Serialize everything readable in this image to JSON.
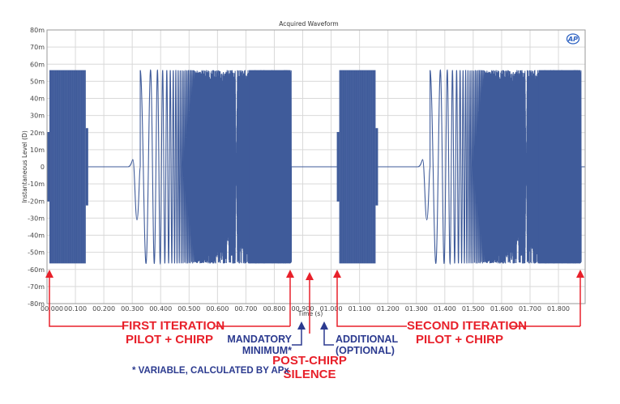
{
  "chart_data": {
    "type": "line",
    "title": "Acquired Waveform",
    "xlabel": "Time (s)",
    "ylabel": "Instantaneous Level (D)",
    "xlim": [
      0,
      1.894
    ],
    "ylim": [
      -0.08,
      0.08
    ],
    "grid": true,
    "x_ticks": [
      "00.000",
      "00.100",
      "00.200",
      "00.300",
      "00.400",
      "00.500",
      "00.600",
      "00.700",
      "00.800",
      "00.900",
      "01.000",
      "01.100",
      "01.200",
      "01.300",
      "01.400",
      "01.500",
      "01.600",
      "01.700",
      "01.800"
    ],
    "y_ticks": [
      "80m",
      "70m",
      "60m",
      "50m",
      "40m",
      "30m",
      "20m",
      "10m",
      "0",
      "-10m",
      "-20m",
      "-30m",
      "-40m",
      "-50m",
      "-60m",
      "-70m",
      "-80m"
    ],
    "series": [
      {
        "name": "Acquired Waveform",
        "color": "#3f5b9a",
        "segments": [
          {
            "kind": "pilot",
            "t_start": 0.0,
            "t_end": 0.145,
            "amplitude": 0.0565
          },
          {
            "kind": "silence",
            "t_start": 0.145,
            "t_end": 0.285,
            "amplitude": 0
          },
          {
            "kind": "chirp",
            "t_start": 0.285,
            "t_end": 0.86,
            "amplitude": 0.0565
          },
          {
            "kind": "silence",
            "t_start": 0.86,
            "t_end": 1.02,
            "amplitude": 0
          },
          {
            "kind": "pilot",
            "t_start": 1.02,
            "t_end": 1.165,
            "amplitude": 0.0565
          },
          {
            "kind": "silence",
            "t_start": 1.165,
            "t_end": 1.305,
            "amplitude": 0
          },
          {
            "kind": "chirp",
            "t_start": 1.305,
            "t_end": 1.88,
            "amplitude": 0.0565
          },
          {
            "kind": "silence",
            "t_start": 1.88,
            "t_end": 1.894,
            "amplitude": 0
          }
        ]
      }
    ],
    "annotations": [
      {
        "text": "FIRST ITERATION PILOT + CHIRP",
        "span": [
          0.0,
          0.86
        ]
      },
      {
        "text": "POST-CHIRP SILENCE",
        "at": 0.92
      },
      {
        "text": "MANDATORY MINIMUM*",
        "at": 0.89
      },
      {
        "text": "ADDITIONAL (OPTIONAL)",
        "at": 0.97
      },
      {
        "text": "SECOND ITERATION PILOT + CHIRP",
        "span": [
          1.02,
          1.88
        ]
      }
    ]
  },
  "logo": "AP",
  "labels": {
    "first_iteration_l1": "FIRST ITERATION",
    "first_iteration_l2": "PILOT + CHIRP",
    "second_iteration_l1": "SECOND ITERATION",
    "second_iteration_l2": "PILOT + CHIRP",
    "mandatory_l1": "MANDATORY",
    "mandatory_l2": "MINIMUM*",
    "additional_l1": "ADDITIONAL",
    "additional_l2": "(OPTIONAL)",
    "post_chirp_l1": "POST-CHIRP",
    "post_chirp_l2": "SILENCE",
    "footnote": "* VARIABLE, CALCULATED BY APx"
  },
  "colors": {
    "annotation_red": "#e8202a",
    "annotation_blue": "#2b3a8f",
    "waveform": "#3f5b9a",
    "grid": "#d9d9d9"
  }
}
